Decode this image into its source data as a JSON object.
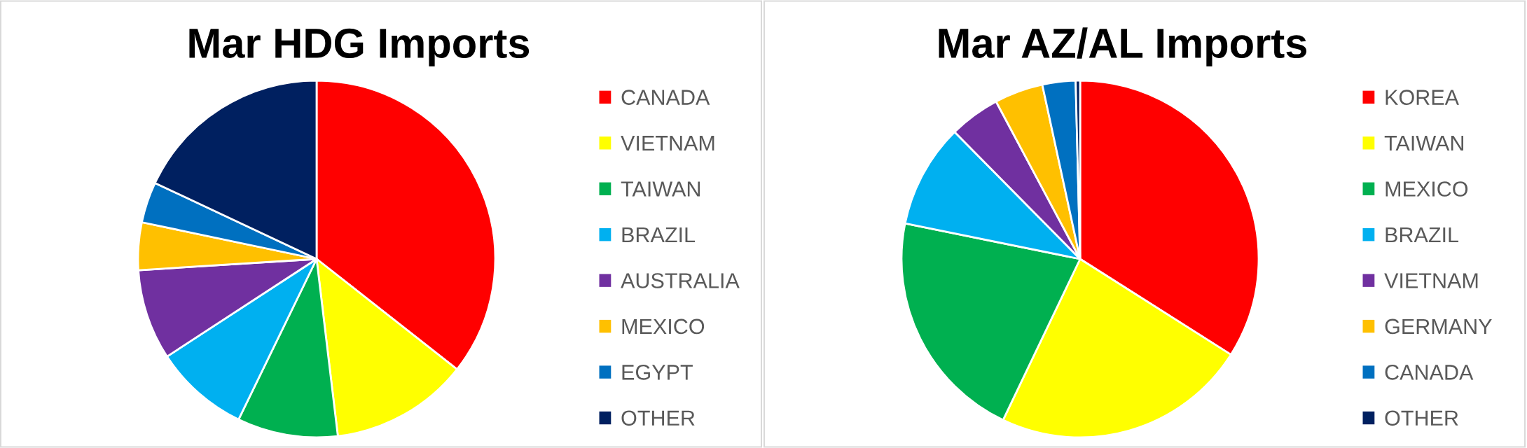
{
  "chart_data": [
    {
      "type": "pie",
      "title": "Mar HDG Imports",
      "categories": [
        "CANADA",
        "VIETNAM",
        "TAIWAN",
        "BRAZIL",
        "AUSTRALIA",
        "MEXICO",
        "EGYPT",
        "OTHER"
      ],
      "values": [
        35.6,
        12.5,
        9.1,
        8.6,
        8.2,
        4.3,
        3.7,
        18.0
      ],
      "colors": [
        "#ff0000",
        "#ffff00",
        "#00b050",
        "#00b0f0",
        "#7030a0",
        "#ffc000",
        "#0070c0",
        "#002060"
      ],
      "legend": "right"
    },
    {
      "type": "pie",
      "title": "Mar AZ/AL Imports",
      "categories": [
        "KOREA",
        "TAIWAN",
        "MEXICO",
        "BRAZIL",
        "VIETNAM",
        "GERMANY",
        "CANADA",
        "OTHER"
      ],
      "values": [
        34.0,
        23.1,
        21.1,
        9.4,
        4.6,
        4.4,
        3.0,
        0.4
      ],
      "colors": [
        "#ff0000",
        "#ffff00",
        "#00b050",
        "#00b0f0",
        "#7030a0",
        "#ffc000",
        "#0070c0",
        "#002060"
      ],
      "legend": "right"
    }
  ]
}
